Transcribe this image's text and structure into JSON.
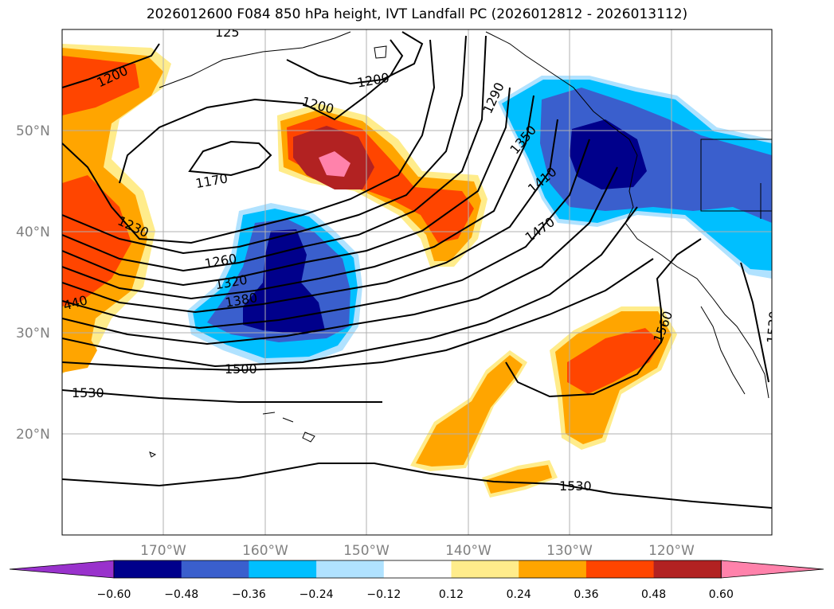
{
  "title": "2026012600 F084 850 hPa height, IVT Landfall PC (2026012812 - 2026013112)",
  "map": {
    "lat_labels": [
      "50°N",
      "40°N",
      "30°N",
      "20°N"
    ],
    "lon_labels": [
      "170°W",
      "160°W",
      "150°W",
      "140°W",
      "130°W",
      "120°W"
    ],
    "contour_labels": [
      "1200",
      "1200",
      "1200",
      "1170",
      "1230",
      "1260",
      "1320",
      "1380",
      "1290",
      "1350",
      "1410",
      "1470",
      "1500",
      "1530",
      "1530",
      "1560",
      "1530",
      "440",
      "125"
    ]
  },
  "colorbar": {
    "colors": [
      "#9932cc",
      "#00008b",
      "#3a5fcd",
      "#00bfff",
      "#b0e2ff",
      "#ffffff",
      "#ffec8b",
      "#ffa500",
      "#ff4500",
      "#b22222",
      "#ff82ab"
    ],
    "ticks": [
      "−0.60",
      "−0.48",
      "−0.36",
      "−0.24",
      "−0.12",
      "0.12",
      "0.24",
      "0.36",
      "0.48",
      "0.60"
    ]
  }
}
